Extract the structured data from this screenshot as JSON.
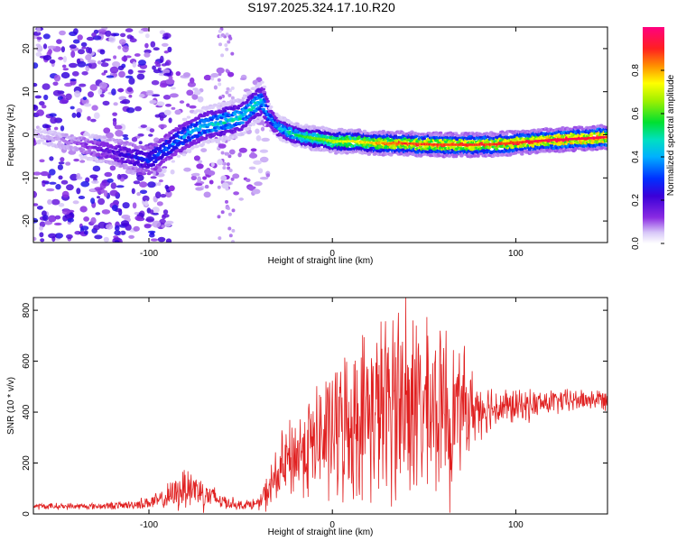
{
  "title": "S197.2025.324.17.10.R20",
  "chart_data": [
    {
      "type": "heatmap",
      "title": "S197.2025.324.17.10.R20",
      "xlabel": "Height of straight line (km)",
      "ylabel": "Frequency (Hz)",
      "xlim": [
        -163,
        150
      ],
      "ylim": [
        -25,
        25
      ],
      "xticks": [
        -100,
        0,
        100
      ],
      "yticks": [
        -20,
        -10,
        0,
        10,
        20
      ],
      "colorbar": {
        "label": "Normalized spectral amplitude",
        "range": [
          0.0,
          1.0
        ],
        "ticks": [
          0.0,
          0.2,
          0.4,
          0.6,
          0.8
        ]
      },
      "ridge": {
        "x": [
          -163,
          -140,
          -120,
          -100,
          -90,
          -80,
          -70,
          -60,
          -50,
          -42,
          -38,
          -34,
          -30,
          -25,
          -20,
          -15,
          -10,
          -5,
          0,
          10,
          20,
          30,
          40,
          50,
          60,
          70,
          80,
          90,
          100,
          110,
          120,
          130,
          140,
          150
        ],
        "freq": [
          0,
          -2,
          -4,
          -6,
          -3,
          0,
          2,
          3,
          4,
          7,
          8,
          4,
          2,
          1,
          0,
          -0.5,
          -0.8,
          -1,
          -1.5,
          -1.5,
          -1.8,
          -2,
          -2,
          -2.2,
          -2.3,
          -2.3,
          -2.3,
          -2.2,
          -1.8,
          -1.5,
          -1.2,
          -1,
          -0.8,
          -0.5
        ],
        "amplitude": [
          0.05,
          0.1,
          0.2,
          0.3,
          0.35,
          0.4,
          0.45,
          0.5,
          0.5,
          0.5,
          0.45,
          0.4,
          0.45,
          0.5,
          0.55,
          0.6,
          0.65,
          0.65,
          0.7,
          0.75,
          0.8,
          0.85,
          0.9,
          0.9,
          0.9,
          0.92,
          0.92,
          0.9,
          0.92,
          0.95,
          0.98,
          1.0,
          0.98,
          0.95
        ]
      }
    },
    {
      "type": "line",
      "xlabel": "Height of straight line (km)",
      "ylabel": "SNR (10 * v/v)",
      "xlim": [
        -163,
        150
      ],
      "ylim": [
        0,
        850
      ],
      "xticks": [
        -100,
        0,
        100
      ],
      "yticks": [
        0,
        200,
        400,
        600,
        800
      ],
      "series": [
        {
          "name": "SNR",
          "color": "#e02020",
          "envelope_x": [
            -163,
            -130,
            -110,
            -95,
            -85,
            -80,
            -75,
            -70,
            -60,
            -50,
            -40,
            -35,
            -30,
            -25,
            -20,
            -15,
            -10,
            -5,
            0,
            5,
            10,
            15,
            20,
            25,
            30,
            35,
            40,
            45,
            50,
            55,
            60,
            65,
            70,
            75,
            80,
            90,
            100,
            110,
            120,
            130,
            140,
            150
          ],
          "envelope_mean": [
            30,
            30,
            35,
            50,
            80,
            110,
            100,
            80,
            50,
            35,
            40,
            90,
            150,
            200,
            230,
            260,
            280,
            300,
            320,
            340,
            360,
            380,
            400,
            410,
            420,
            420,
            420,
            410,
            400,
            400,
            400,
            410,
            410,
            410,
            420,
            420,
            420,
            430,
            440,
            445,
            450,
            450
          ],
          "envelope_amp": [
            15,
            15,
            20,
            40,
            80,
            110,
            100,
            80,
            40,
            20,
            30,
            90,
            150,
            180,
            200,
            230,
            260,
            300,
            320,
            340,
            360,
            380,
            400,
            420,
            430,
            440,
            440,
            420,
            400,
            380,
            360,
            320,
            260,
            200,
            140,
            100,
            80,
            70,
            60,
            55,
            50,
            50
          ],
          "peaks": [
            {
              "x": 40,
              "y": 850
            },
            {
              "x": 36,
              "y": 790
            },
            {
              "x": 44,
              "y": 760
            },
            {
              "x": 33,
              "y": 760
            },
            {
              "x": 52,
              "y": 700
            },
            {
              "x": 62,
              "y": 720
            },
            {
              "x": 72,
              "y": 660
            },
            {
              "x": 64,
              "y": 5
            }
          ]
        }
      ]
    }
  ]
}
